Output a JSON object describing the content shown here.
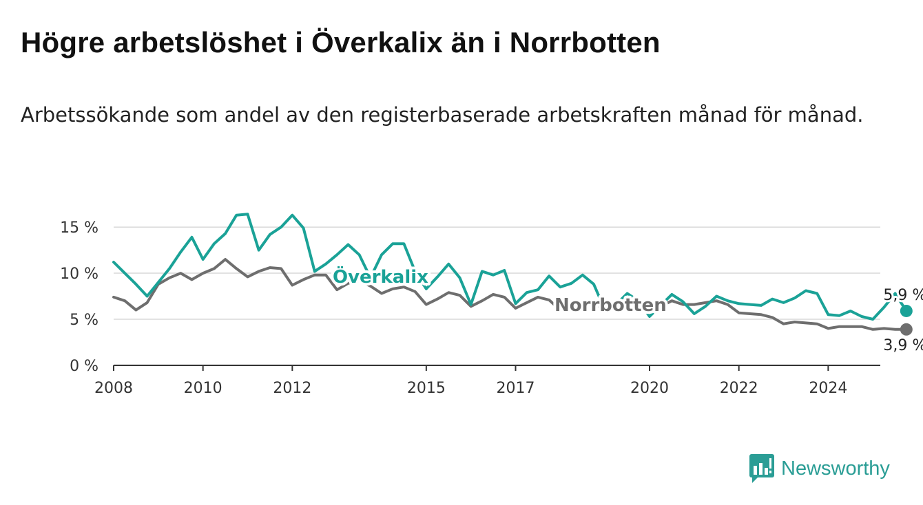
{
  "title": "Högre arbetslöshet i Överkalix än i Norrbotten",
  "subtitle": "Arbetssökande som andel av den registerbaserade arbetskraften månad för månad.",
  "brand": {
    "name": "Newsworthy",
    "icon": "newsworthy-logo-icon"
  },
  "colors": {
    "overkalix": "#1aa297",
    "norrbotten": "#6e6e6e",
    "grid": "#d9d9d9",
    "axis": "#333333"
  },
  "chart_data": {
    "type": "line",
    "x_ticks": [
      "2008",
      "2010",
      "2012",
      "2015",
      "2017",
      "2020",
      "2022",
      "2024"
    ],
    "y_ticks": [
      "0 %",
      "5 %",
      "10 %",
      "15 %"
    ],
    "ylim": [
      0,
      16.5
    ],
    "xlim": [
      "2008-01",
      "2025-03"
    ],
    "grid": true,
    "series": [
      {
        "name": "Överkalix",
        "end_label": "5,9 %",
        "points": [
          [
            "2008-01",
            11.2
          ],
          [
            "2008-04",
            10.0
          ],
          [
            "2008-07",
            8.8
          ],
          [
            "2008-10",
            7.5
          ],
          [
            "2009-01",
            9.0
          ],
          [
            "2009-04",
            10.5
          ],
          [
            "2009-07",
            12.3
          ],
          [
            "2009-10",
            13.9
          ],
          [
            "2010-01",
            11.5
          ],
          [
            "2010-04",
            13.2
          ],
          [
            "2010-07",
            14.3
          ],
          [
            "2010-10",
            16.3
          ],
          [
            "2011-01",
            16.4
          ],
          [
            "2011-04",
            12.5
          ],
          [
            "2011-07",
            14.2
          ],
          [
            "2011-10",
            15.0
          ],
          [
            "2012-01",
            16.3
          ],
          [
            "2012-04",
            14.9
          ],
          [
            "2012-07",
            10.2
          ],
          [
            "2012-10",
            11.0
          ],
          [
            "2013-01",
            12.0
          ],
          [
            "2013-04",
            13.1
          ],
          [
            "2013-07",
            12.0
          ],
          [
            "2013-10",
            9.5
          ],
          [
            "2014-01",
            12.0
          ],
          [
            "2014-04",
            13.2
          ],
          [
            "2014-07",
            13.2
          ],
          [
            "2014-10",
            10.2
          ],
          [
            "2015-01",
            8.3
          ],
          [
            "2015-04",
            9.6
          ],
          [
            "2015-07",
            11.0
          ],
          [
            "2015-10",
            9.5
          ],
          [
            "2016-01",
            6.6
          ],
          [
            "2016-04",
            10.2
          ],
          [
            "2016-07",
            9.8
          ],
          [
            "2016-10",
            10.3
          ],
          [
            "2017-01",
            6.7
          ],
          [
            "2017-04",
            7.9
          ],
          [
            "2017-07",
            8.2
          ],
          [
            "2017-10",
            9.7
          ],
          [
            "2018-01",
            8.5
          ],
          [
            "2018-04",
            8.9
          ],
          [
            "2018-07",
            9.8
          ],
          [
            "2018-10",
            8.8
          ],
          [
            "2019-01",
            6.0
          ],
          [
            "2019-04",
            6.6
          ],
          [
            "2019-07",
            7.8
          ],
          [
            "2019-10",
            7.0
          ],
          [
            "2020-01",
            5.3
          ],
          [
            "2020-04",
            6.5
          ],
          [
            "2020-07",
            7.7
          ],
          [
            "2020-10",
            6.9
          ],
          [
            "2021-01",
            5.6
          ],
          [
            "2021-04",
            6.4
          ],
          [
            "2021-07",
            7.5
          ],
          [
            "2021-10",
            7.0
          ],
          [
            "2022-01",
            6.7
          ],
          [
            "2022-04",
            6.6
          ],
          [
            "2022-07",
            6.5
          ],
          [
            "2022-10",
            7.2
          ],
          [
            "2023-01",
            6.8
          ],
          [
            "2023-04",
            7.3
          ],
          [
            "2023-07",
            8.1
          ],
          [
            "2023-10",
            7.8
          ],
          [
            "2024-01",
            5.5
          ],
          [
            "2024-04",
            5.4
          ],
          [
            "2024-07",
            5.9
          ],
          [
            "2024-10",
            5.3
          ],
          [
            "2025-01",
            5.0
          ],
          [
            "2025-04",
            6.3
          ],
          [
            "2025-07",
            7.8
          ],
          [
            "2025-10",
            5.9
          ]
        ]
      },
      {
        "name": "Norrbotten",
        "end_label": "3,9 %",
        "points": [
          [
            "2008-01",
            7.4
          ],
          [
            "2008-04",
            7.0
          ],
          [
            "2008-07",
            6.0
          ],
          [
            "2008-10",
            6.8
          ],
          [
            "2009-01",
            8.8
          ],
          [
            "2009-04",
            9.5
          ],
          [
            "2009-07",
            10.0
          ],
          [
            "2009-10",
            9.3
          ],
          [
            "2010-01",
            10.0
          ],
          [
            "2010-04",
            10.5
          ],
          [
            "2010-07",
            11.5
          ],
          [
            "2010-10",
            10.5
          ],
          [
            "2011-01",
            9.6
          ],
          [
            "2011-04",
            10.2
          ],
          [
            "2011-07",
            10.6
          ],
          [
            "2011-10",
            10.5
          ],
          [
            "2012-01",
            8.7
          ],
          [
            "2012-04",
            9.3
          ],
          [
            "2012-07",
            9.8
          ],
          [
            "2012-10",
            9.8
          ],
          [
            "2013-01",
            8.2
          ],
          [
            "2013-04",
            8.9
          ],
          [
            "2013-07",
            9.2
          ],
          [
            "2013-10",
            8.6
          ],
          [
            "2014-01",
            7.8
          ],
          [
            "2014-04",
            8.3
          ],
          [
            "2014-07",
            8.5
          ],
          [
            "2014-10",
            8.0
          ],
          [
            "2015-01",
            6.6
          ],
          [
            "2015-04",
            7.2
          ],
          [
            "2015-07",
            7.9
          ],
          [
            "2015-10",
            7.6
          ],
          [
            "2016-01",
            6.4
          ],
          [
            "2016-04",
            7.0
          ],
          [
            "2016-07",
            7.7
          ],
          [
            "2016-10",
            7.4
          ],
          [
            "2017-01",
            6.2
          ],
          [
            "2017-04",
            6.8
          ],
          [
            "2017-07",
            7.4
          ],
          [
            "2017-10",
            7.1
          ],
          [
            "2018-01",
            6.0
          ],
          [
            "2018-04",
            6.3
          ],
          [
            "2018-07",
            6.9
          ],
          [
            "2018-10",
            6.7
          ],
          [
            "2019-01",
            6.0
          ],
          [
            "2019-04",
            6.4
          ],
          [
            "2019-07",
            6.9
          ],
          [
            "2019-10",
            6.7
          ],
          [
            "2020-01",
            5.9
          ],
          [
            "2020-04",
            6.4
          ],
          [
            "2020-07",
            7.0
          ],
          [
            "2020-10",
            6.6
          ],
          [
            "2021-01",
            6.6
          ],
          [
            "2021-04",
            6.8
          ],
          [
            "2021-07",
            7.0
          ],
          [
            "2021-10",
            6.6
          ],
          [
            "2022-01",
            5.7
          ],
          [
            "2022-04",
            5.6
          ],
          [
            "2022-07",
            5.5
          ],
          [
            "2022-10",
            5.2
          ],
          [
            "2023-01",
            4.5
          ],
          [
            "2023-04",
            4.7
          ],
          [
            "2023-07",
            4.6
          ],
          [
            "2023-10",
            4.5
          ],
          [
            "2024-01",
            4.0
          ],
          [
            "2024-04",
            4.2
          ],
          [
            "2024-07",
            4.2
          ],
          [
            "2024-10",
            4.2
          ],
          [
            "2025-01",
            3.9
          ],
          [
            "2025-04",
            4.0
          ],
          [
            "2025-07",
            3.9
          ],
          [
            "2025-10",
            3.9
          ]
        ]
      }
    ]
  }
}
